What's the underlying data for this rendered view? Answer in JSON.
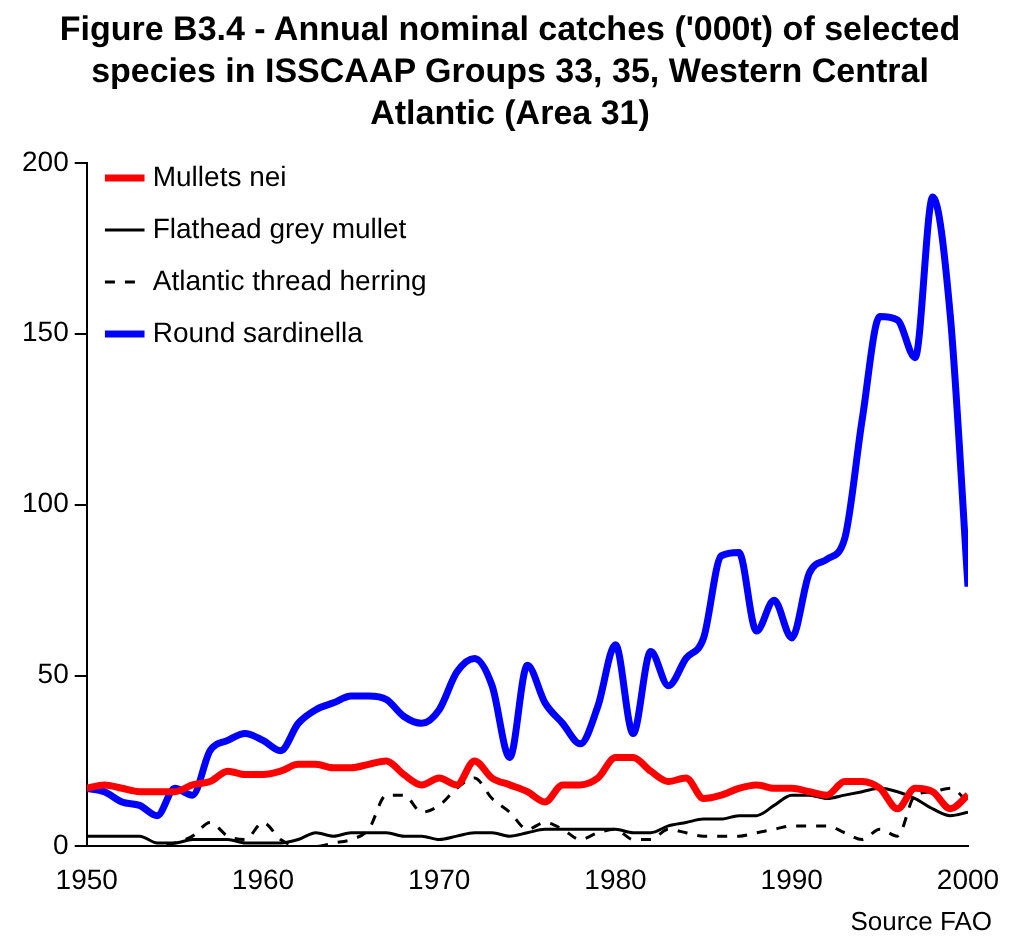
{
  "chart_data": {
    "type": "line",
    "title": "Figure B3.4 - Annual nominal catches ('000t) of selected species in ISSCAAP Groups 33, 35, Western Central Atlantic (Area 31)",
    "x": [
      1950,
      1951,
      1952,
      1953,
      1954,
      1955,
      1956,
      1957,
      1958,
      1959,
      1960,
      1961,
      1962,
      1963,
      1964,
      1965,
      1966,
      1967,
      1968,
      1969,
      1970,
      1971,
      1972,
      1973,
      1974,
      1975,
      1976,
      1977,
      1978,
      1979,
      1980,
      1981,
      1982,
      1983,
      1984,
      1985,
      1986,
      1987,
      1988,
      1989,
      1990,
      1991,
      1992,
      1993,
      1994,
      1995,
      1996,
      1997,
      1998,
      1999,
      2000
    ],
    "series": [
      {
        "name": "Mullets nei",
        "color": "#ff0000",
        "line_style": "solid",
        "values": [
          17,
          18,
          17,
          16,
          16,
          16,
          18,
          19,
          22,
          21,
          21,
          22,
          24,
          24,
          23,
          23,
          24,
          25,
          21,
          18,
          20,
          18,
          25,
          20,
          18,
          16,
          13,
          18,
          18,
          20,
          26,
          26,
          22,
          19,
          20,
          14,
          15,
          17,
          18,
          17,
          17,
          16,
          15,
          19,
          19,
          17,
          11,
          17,
          16,
          11,
          15
        ]
      },
      {
        "name": "Flathead grey mullet",
        "color": "#000000",
        "line_style": "solid",
        "values": [
          3,
          3,
          3,
          3,
          1,
          1,
          2,
          2,
          2,
          1,
          1,
          1,
          2,
          4,
          3,
          4,
          4,
          4,
          3,
          3,
          2,
          3,
          4,
          4,
          3,
          4,
          5,
          5,
          5,
          5,
          5,
          4,
          4,
          6,
          7,
          8,
          8,
          9,
          9,
          12,
          15,
          15,
          14,
          15,
          16,
          17,
          16,
          14,
          11,
          9,
          10
        ]
      },
      {
        "name": "Atlantic thread herring",
        "color": "#000000",
        "line_style": "dashed",
        "values": [
          0,
          0,
          0,
          0,
          0,
          1,
          3,
          7,
          3,
          2,
          7,
          2,
          0,
          0,
          1,
          2,
          5,
          15,
          15,
          10,
          12,
          17,
          20,
          14,
          10,
          5,
          7,
          5,
          2,
          4,
          5,
          2,
          2,
          5,
          4,
          3,
          3,
          3,
          4,
          5,
          6,
          6,
          6,
          4,
          2,
          5,
          3,
          15,
          16,
          17,
          13
        ]
      },
      {
        "name": "Round sardinella",
        "color": "#0000ff",
        "line_style": "solid",
        "values": [
          17,
          16,
          13,
          12,
          9,
          17,
          15,
          28,
          31,
          33,
          31,
          28,
          36,
          40,
          42,
          44,
          44,
          43,
          38,
          36,
          40,
          51,
          55,
          47,
          26,
          53,
          42,
          36,
          30,
          41,
          59,
          33,
          57,
          47,
          55,
          61,
          85,
          86,
          63,
          72,
          61,
          80,
          84,
          90,
          125,
          155,
          154,
          143,
          190,
          155,
          76
        ]
      }
    ],
    "xlim": [
      1950,
      2000
    ],
    "xticks": [
      1950,
      1960,
      1970,
      1980,
      1990,
      2000
    ],
    "ylim": [
      0,
      200
    ],
    "yticks": [
      0,
      50,
      100,
      150,
      200
    ],
    "grid": false,
    "legend": "top left",
    "marker": "none",
    "annotations": [
      "Source FAO"
    ]
  }
}
